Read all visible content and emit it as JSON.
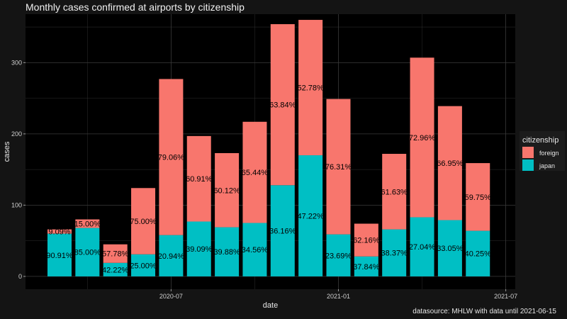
{
  "caption": "datasource: MHLW with data until 2021-06-15",
  "colors": {
    "foreign": "#F8766D",
    "japan": "#00BFC4",
    "panel": "#000000",
    "grid": "#3a3a3a"
  },
  "chart_data": {
    "type": "bar",
    "stacked": true,
    "title": "Monthly cases confirmed at airports by citizenship",
    "xlabel": "date",
    "ylabel": "cases",
    "ylim": [
      -18,
      368
    ],
    "yticks": [
      0,
      100,
      200,
      300
    ],
    "xticks": [
      "2020-07",
      "2021-01",
      "2021-07"
    ],
    "grid": true,
    "legend": {
      "title": "citizenship",
      "position": "right",
      "entries": [
        "foreign",
        "japan"
      ]
    },
    "categories": [
      "2020-03",
      "2020-04",
      "2020-05",
      "2020-06",
      "2020-07",
      "2020-08",
      "2020-09",
      "2020-10",
      "2020-11",
      "2020-12",
      "2021-01",
      "2021-02",
      "2021-03",
      "2021-04",
      "2021-05",
      "2021-06"
    ],
    "series": [
      {
        "name": "japan",
        "values": [
          60,
          68,
          19,
          31,
          58,
          77,
          69,
          75,
          128,
          170,
          59,
          28,
          66,
          83,
          79,
          64
        ],
        "labels": [
          "90.91%",
          "85.00%",
          "42.22%",
          "25.00%",
          "20.94%",
          "39.09%",
          "39.88%",
          "34.56%",
          "36.16%",
          "47.22%",
          "23.69%",
          "37.84%",
          "38.37%",
          "27.04%",
          "33.05%",
          "40.25%"
        ]
      },
      {
        "name": "foreign",
        "values": [
          6,
          12,
          26,
          93,
          219,
          120,
          104,
          142,
          226,
          190,
          190,
          46,
          106,
          224,
          160,
          95
        ],
        "labels": [
          "9.09%",
          "15.00%",
          "57.78%",
          "75.00%",
          "79.06%",
          "60.91%",
          "60.12%",
          "65.44%",
          "63.84%",
          "52.78%",
          "76.31%",
          "62.16%",
          "61.63%",
          "72.96%",
          "66.95%",
          "59.75%"
        ]
      }
    ]
  }
}
